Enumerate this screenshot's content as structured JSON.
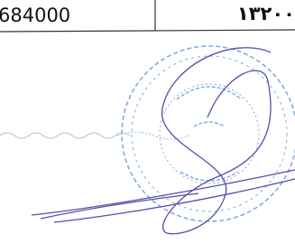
{
  "table": {
    "rows": [
      [
        "684000",
        "۱۳۲۰۰"
      ]
    ]
  }
}
